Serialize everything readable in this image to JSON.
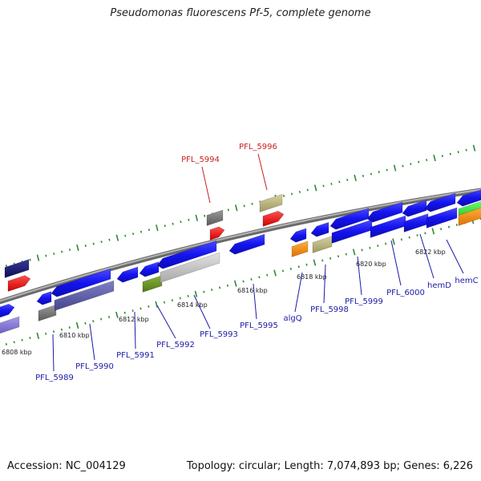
{
  "title": "Pseudomonas fluorescens Pf-5, complete genome",
  "footer": {
    "accession": "Accession: NC_004129",
    "stats": "Topology: circular; Length: 7,074,893 bp; Genes: 6,226"
  },
  "colors": {
    "backbone": "#8f8f8f",
    "tick_marks": "#2e8b2e",
    "label_blue": "#1a1aa6",
    "label_red": "#c81e1e",
    "leader": "#1a1aa6"
  },
  "scale_ticks": [
    {
      "label": "6808 kbp"
    },
    {
      "label": "6810 kbp"
    },
    {
      "label": "6812 kbp"
    },
    {
      "label": "6814 kbp"
    },
    {
      "label": "6816 kbp"
    },
    {
      "label": "6818 kbp"
    },
    {
      "label": "6820 kbp"
    },
    {
      "label": "6822 kbp"
    }
  ],
  "genes_above": [
    {
      "label": "PFL_5994",
      "color": "red"
    },
    {
      "label": "PFL_5996",
      "color": "red"
    }
  ],
  "genes_below": [
    {
      "label": "PFL_5989"
    },
    {
      "label": "PFL_5990"
    },
    {
      "label": "PFL_5991"
    },
    {
      "label": "PFL_5992"
    },
    {
      "label": "PFL_5993"
    },
    {
      "label": "PFL_5995"
    },
    {
      "label": "algQ"
    },
    {
      "label": "PFL_5998"
    },
    {
      "label": "PFL_5999"
    },
    {
      "label": "PFL_6000"
    },
    {
      "label": "hemD"
    },
    {
      "label": "hemC"
    }
  ]
}
